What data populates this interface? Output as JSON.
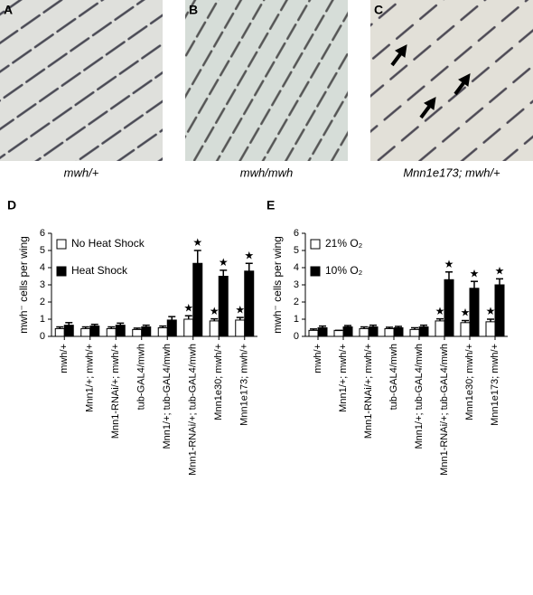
{
  "panels": [
    "A",
    "B",
    "C"
  ],
  "captions": [
    "mwh/+",
    "mwh/mwh",
    "Mnn1e173; mwh/+"
  ],
  "chart_data": [
    {
      "type": "bar",
      "panel": "D",
      "ylabel": "mwh⁻ cells per wing",
      "categories": [
        "mwh/+",
        "Mnn1/+; mwh/+",
        "Mnn1-RNAi/+; mwh/+",
        "tub-GAL4/mwh",
        "Mnn1/+; tub-GAL4/mwh",
        "Mnn1-RNAi/+; tub-GAL4/mwh",
        "Mnn1e30; mwh/+",
        "Mnn1e173; mwh/+"
      ],
      "series": [
        {
          "name": "No Heat Shock",
          "color": "#ffffff",
          "values": [
            0.45,
            0.45,
            0.45,
            0.4,
            0.5,
            1.0,
            0.9,
            0.95
          ],
          "errors": [
            0.1,
            0.1,
            0.1,
            0.08,
            0.1,
            0.2,
            0.12,
            0.15
          ],
          "annotations": [
            null,
            null,
            null,
            null,
            null,
            "★",
            "★",
            "★"
          ]
        },
        {
          "name": "Heat Shock",
          "color": "#000000",
          "values": [
            0.65,
            0.6,
            0.65,
            0.55,
            0.95,
            4.25,
            3.5,
            3.8
          ],
          "errors": [
            0.15,
            0.1,
            0.12,
            0.1,
            0.2,
            0.75,
            0.35,
            0.45
          ],
          "annotations": [
            null,
            null,
            null,
            null,
            null,
            "★",
            "★",
            "★"
          ]
        }
      ],
      "ylim": [
        0,
        6
      ],
      "yticks": [
        0,
        1,
        2,
        3,
        4,
        5,
        6
      ],
      "legend": "upper left"
    },
    {
      "type": "bar",
      "panel": "E",
      "ylabel": "mwh⁻ cells per wing",
      "categories": [
        "mwh/+",
        "Mnn1/+; mwh/+",
        "Mnn1-RNAi/+; mwh/+",
        "tub-GAL4/mwh",
        "Mnn1/+; tub-GAL4/mwh",
        "Mnn1-RNAi/+; tub-GAL4/mwh",
        "Mnn1e30; mwh/+",
        "Mnn1e173; mwh/+"
      ],
      "series": [
        {
          "name": "21% O₂",
          "color": "#ffffff",
          "values": [
            0.35,
            0.35,
            0.45,
            0.45,
            0.4,
            0.9,
            0.8,
            0.85
          ],
          "errors": [
            0.08,
            0,
            0.1,
            0.08,
            0.1,
            0.12,
            0.12,
            0.15
          ],
          "annotations": [
            null,
            null,
            null,
            null,
            null,
            "★",
            "★",
            "★"
          ]
        },
        {
          "name": "10% O₂",
          "color": "#000000",
          "values": [
            0.5,
            0.55,
            0.55,
            0.5,
            0.55,
            3.3,
            2.8,
            3.0
          ],
          "errors": [
            0.1,
            0.08,
            0.1,
            0.08,
            0.1,
            0.45,
            0.4,
            0.35
          ],
          "annotations": [
            null,
            null,
            null,
            null,
            null,
            "★",
            "★",
            "★"
          ]
        }
      ],
      "ylim": [
        0,
        6
      ],
      "yticks": [
        0,
        1,
        2,
        3,
        4,
        5,
        6
      ],
      "legend": "upper left"
    }
  ]
}
